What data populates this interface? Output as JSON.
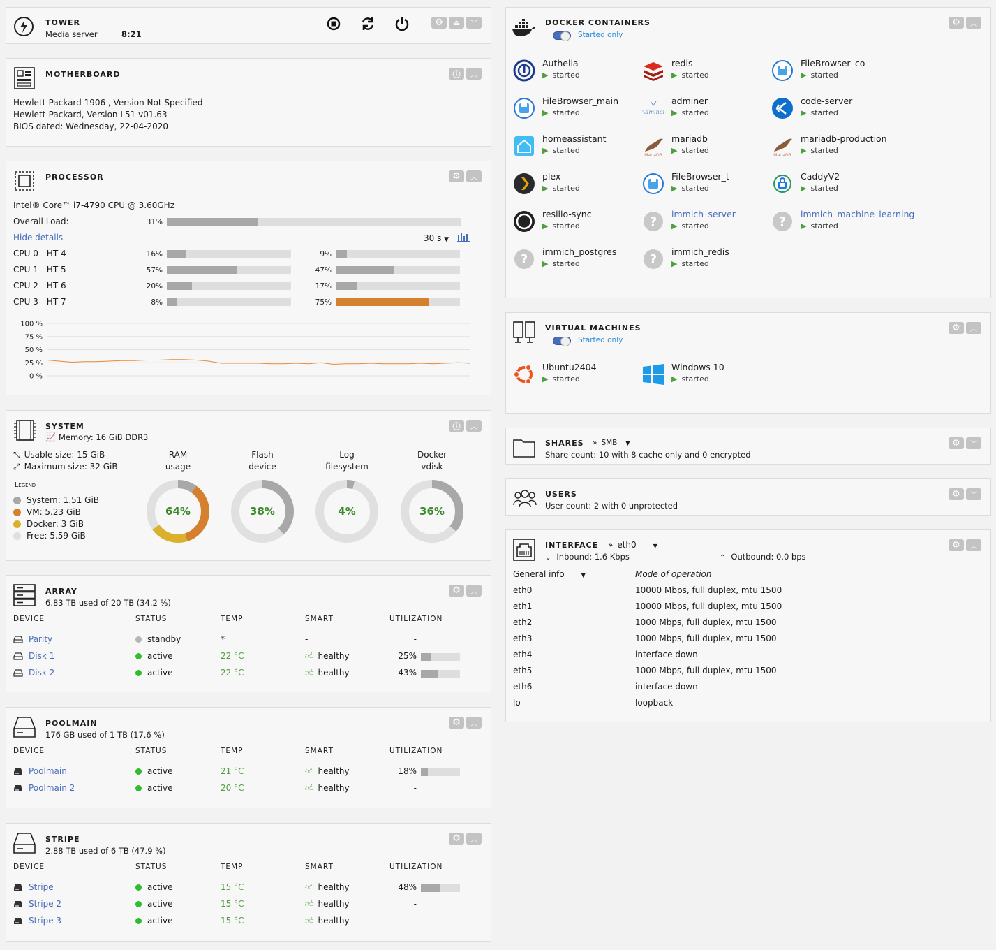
{
  "tower": {
    "title": "TOWER",
    "subtitle": "Media server",
    "time": "8:21"
  },
  "motherboard": {
    "title": "MOTHERBOARD",
    "lines": [
      "Hewlett-Packard 1906 , Version Not Specified",
      "Hewlett-Packard, Version L51 v01.63",
      "BIOS dated: Wednesday, 22-04-2020"
    ]
  },
  "processor": {
    "title": "PROCESSOR",
    "cpu_name": "Intel® Core™ i7-4790 CPU @ 3.60GHz",
    "overall_label": "Overall Load:",
    "overall_pct": "31%",
    "overall_value": 0.31,
    "hide_details": "Hide details",
    "interval": "30 s",
    "cores": [
      {
        "label": "CPU 0 - HT 4",
        "a_pct": "16%",
        "a": 0.16,
        "b_pct": "9%",
        "b": 0.09
      },
      {
        "label": "CPU 1 - HT 5",
        "a_pct": "57%",
        "a": 0.57,
        "b_pct": "47%",
        "b": 0.47
      },
      {
        "label": "CPU 2 - HT 6",
        "a_pct": "20%",
        "a": 0.2,
        "b_pct": "17%",
        "b": 0.17
      },
      {
        "label": "CPU 3 - HT 7",
        "a_pct": "8%",
        "a": 0.08,
        "b_pct": "75%",
        "b": 0.75
      }
    ],
    "graph_ticks": [
      "100 %",
      "75 %",
      "50 %",
      "25 %",
      "0 %"
    ],
    "graph_values": [
      30,
      28,
      26,
      27,
      27,
      28,
      29,
      29,
      30,
      30,
      31,
      31,
      30,
      28,
      24,
      24,
      24,
      24,
      23,
      23,
      24,
      23,
      25,
      22,
      23,
      23,
      24,
      23,
      23,
      23,
      24,
      23,
      24,
      25,
      24
    ]
  },
  "system": {
    "title": "SYSTEM",
    "memory": "Memory: 16 GiB DDR3",
    "usable": "Usable size: 15 GiB",
    "maximum": "Maximum size: 32 GiB",
    "legend_title": "Legend",
    "legend": [
      {
        "label": "System: 1.51 GiB",
        "color": "#a8a8a8"
      },
      {
        "label": "VM: 5.23 GiB",
        "color": "#d5802e"
      },
      {
        "label": "Docker: 3 GiB",
        "color": "#d9b12c"
      },
      {
        "label": "Free: 5.59 GiB",
        "color": "#e0e0e0"
      }
    ],
    "rings": [
      {
        "label1": "RAM",
        "label2": "usage",
        "pct": "64%"
      },
      {
        "label1": "Flash",
        "label2": "device",
        "pct": "38%"
      },
      {
        "label1": "Log",
        "label2": "filesystem",
        "pct": "4%"
      },
      {
        "label1": "Docker",
        "label2": "vdisk",
        "pct": "36%"
      }
    ]
  },
  "columns": {
    "device": "Device",
    "status": "Status",
    "temp": "Temp",
    "smart": "Smart",
    "util": "Utilization"
  },
  "array": {
    "title": "ARRAY",
    "subtitle": "6.83 TB used of 20 TB (34.2 %)",
    "rows": [
      {
        "name": "Parity",
        "status": "standby",
        "temp": "*",
        "smart": "-",
        "util": "-",
        "dot": "#b5b5b5"
      },
      {
        "name": "Disk 1",
        "status": "active",
        "temp": "22 °C",
        "smart": "healthy",
        "util": "25%",
        "fill": 0.25,
        "dot": "#2ebd2e"
      },
      {
        "name": "Disk 2",
        "status": "active",
        "temp": "22 °C",
        "smart": "healthy",
        "util": "43%",
        "fill": 0.43,
        "dot": "#2ebd2e"
      }
    ]
  },
  "poolmain": {
    "title": "POOLMAIN",
    "subtitle": "176 GB used of 1 TB (17.6 %)",
    "rows": [
      {
        "name": "Poolmain",
        "status": "active",
        "temp": "21 °C",
        "smart": "healthy",
        "util": "18%",
        "fill": 0.18
      },
      {
        "name": "Poolmain 2",
        "status": "active",
        "temp": "20 °C",
        "smart": "healthy",
        "util": "-"
      }
    ]
  },
  "stripe": {
    "title": "STRIPE",
    "subtitle": "2.88 TB used of 6 TB (47.9 %)",
    "rows": [
      {
        "name": "Stripe",
        "status": "active",
        "temp": "15 °C",
        "smart": "healthy",
        "util": "48%",
        "fill": 0.48
      },
      {
        "name": "Stripe 2",
        "status": "active",
        "temp": "15 °C",
        "smart": "healthy",
        "util": "-"
      },
      {
        "name": "Stripe 3",
        "status": "active",
        "temp": "15 °C",
        "smart": "healthy",
        "util": "-"
      }
    ]
  },
  "docker": {
    "title": "DOCKER CONTAINERS",
    "filter": "Started only",
    "containers": [
      {
        "name": "Authelia",
        "status": "started",
        "icon": "authelia-icon",
        "color": "#1a3a8a"
      },
      {
        "name": "redis",
        "status": "started",
        "icon": "redis-icon",
        "color": "#d82c20"
      },
      {
        "name": "FileBrowser_co",
        "status": "started",
        "icon": "filebrowser-icon",
        "color": "#2a78d6"
      },
      {
        "name": "FileBrowser_main",
        "status": "started",
        "icon": "filebrowser-icon",
        "color": "#2a78d6"
      },
      {
        "name": "adminer",
        "status": "started",
        "icon": "adminer-icon",
        "color": "#6a8cc8"
      },
      {
        "name": "code-server",
        "status": "started",
        "icon": "code-server-icon",
        "color": "#0e6ecb"
      },
      {
        "name": "homeassistant",
        "status": "started",
        "icon": "homeassistant-icon",
        "color": "#41bdf5"
      },
      {
        "name": "mariadb",
        "status": "started",
        "icon": "mariadb-icon",
        "color": "#8a5a3a"
      },
      {
        "name": "mariadb-production",
        "status": "started",
        "icon": "mariadb-icon",
        "color": "#8a5a3a"
      },
      {
        "name": "plex",
        "status": "started",
        "icon": "plex-icon",
        "color": "#e5a00d"
      },
      {
        "name": "FileBrowser_t",
        "status": "started",
        "icon": "filebrowser-icon",
        "color": "#2a78d6"
      },
      {
        "name": "CaddyV2",
        "status": "started",
        "icon": "caddy-icon",
        "color": "#2a9a5a"
      },
      {
        "name": "resilio-sync",
        "status": "started",
        "icon": "resilio-icon",
        "color": "#333333"
      },
      {
        "name": "immich_server",
        "status": "started",
        "icon": "question-icon",
        "color": "#c8c8c8",
        "link": true
      },
      {
        "name": "immich_machine_learning",
        "status": "started",
        "icon": "question-icon",
        "color": "#c8c8c8",
        "link": true
      },
      {
        "name": "immich_postgres",
        "status": "started",
        "icon": "question-icon",
        "color": "#c8c8c8"
      },
      {
        "name": "immich_redis",
        "status": "started",
        "icon": "question-icon",
        "color": "#c8c8c8"
      }
    ]
  },
  "vms": {
    "title": "VIRTUAL MACHINES",
    "filter": "Started only",
    "items": [
      {
        "name": "Ubuntu2404",
        "status": "started",
        "icon": "ubuntu-icon"
      },
      {
        "name": "Windows 10",
        "status": "started",
        "icon": "windows-icon"
      }
    ]
  },
  "shares": {
    "title": "SHARES",
    "protocol": "SMB",
    "subtitle": "Share count: 10 with 8 cache only and 0 encrypted"
  },
  "users": {
    "title": "USERS",
    "subtitle": "User count: 2 with 0 unprotected"
  },
  "interface": {
    "title": "INTERFACE",
    "selected": "eth0",
    "inbound": "Inbound: 1.6 Kbps",
    "outbound": "Outbound: 0.0 bps",
    "general": "General info",
    "mode_hdr": "Mode of operation",
    "rows": [
      {
        "name": "eth0",
        "mode": "10000 Mbps, full duplex, mtu 1500"
      },
      {
        "name": "eth1",
        "mode": "10000 Mbps, full duplex, mtu 1500"
      },
      {
        "name": "eth2",
        "mode": "1000 Mbps, full duplex, mtu 1500"
      },
      {
        "name": "eth3",
        "mode": "1000 Mbps, full duplex, mtu 1500"
      },
      {
        "name": "eth4",
        "mode": "interface down"
      },
      {
        "name": "eth5",
        "mode": "1000 Mbps, full duplex, mtu 1500"
      },
      {
        "name": "eth6",
        "mode": "interface down"
      },
      {
        "name": "lo",
        "mode": "loopback"
      }
    ]
  }
}
